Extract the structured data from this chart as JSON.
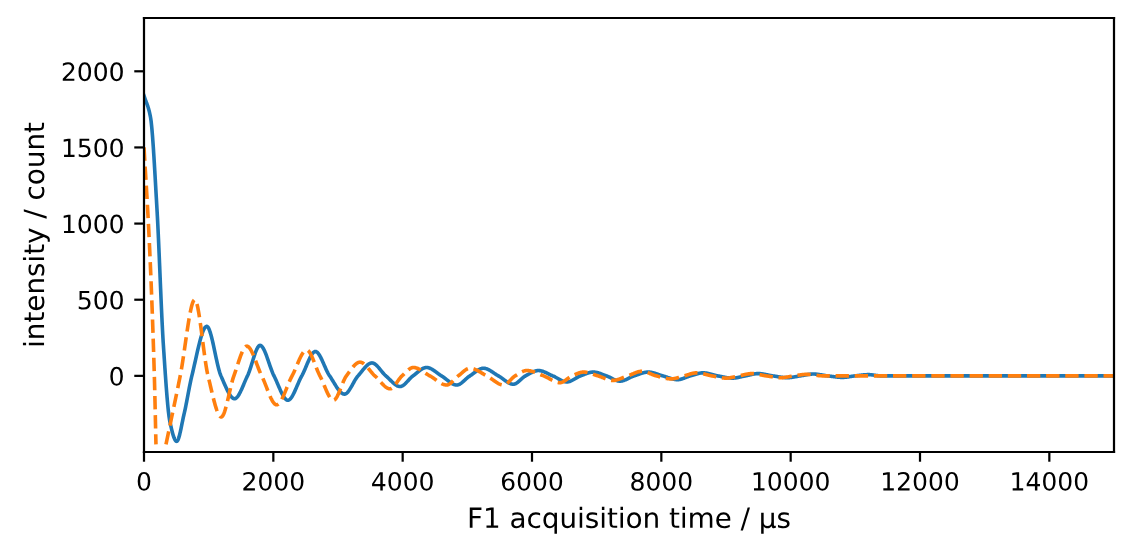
{
  "chart_data": {
    "type": "line",
    "xlabel": "F1 acquisition time / µs",
    "ylabel": "intensity / count",
    "xlim": [
      0,
      15000
    ],
    "xticks": [
      0,
      2000,
      4000,
      6000,
      8000,
      10000,
      12000,
      14000
    ],
    "ylim": [
      -500,
      2350
    ],
    "yticks": [
      0,
      500,
      1000,
      1500,
      2000
    ],
    "grid": false,
    "legend": false,
    "series": [
      {
        "color": "#1f77b4",
        "line_style": "solid",
        "x": [
          0,
          100,
          200,
          300,
          400,
          505,
          620,
          740,
          970,
          1190,
          1400,
          1600,
          1795,
          2010,
          2225,
          2440,
          2650,
          2870,
          3100,
          3310,
          3525,
          3740,
          3960,
          4160,
          4370,
          4600,
          4835,
          5040,
          5250,
          5480,
          5710,
          5900,
          6100,
          6320,
          6540,
          6750,
          6950,
          7150,
          7360,
          7580,
          7800,
          8020,
          8250,
          8450,
          8650,
          8870,
          9100,
          9300,
          9500,
          9720,
          9950,
          10150,
          10350,
          10570,
          10800,
          11000,
          11200,
          11400,
          12000,
          13000,
          14000,
          15000
        ],
        "values": [
          1840,
          1700,
          1100,
          200,
          -300,
          -430,
          -250,
          0,
          325,
          0,
          -150,
          0,
          200,
          0,
          -160,
          0,
          160,
          0,
          -120,
          0,
          85,
          0,
          -70,
          0,
          55,
          0,
          -60,
          0,
          50,
          0,
          -55,
          0,
          35,
          0,
          -40,
          0,
          25,
          0,
          -35,
          0,
          25,
          0,
          -25,
          0,
          20,
          0,
          -15,
          0,
          15,
          0,
          -12,
          0,
          12,
          0,
          -10,
          0,
          8,
          0,
          0,
          0,
          0,
          0
        ]
      },
      {
        "color": "#ff7f0e",
        "line_style": "dashed",
        "x": [
          0,
          80,
          160,
          185,
          260,
          340,
          560,
          785,
          990,
          1195,
          1390,
          1590,
          1820,
          2050,
          2290,
          2515,
          2720,
          2930,
          3130,
          3340,
          3570,
          3805,
          3990,
          4165,
          4420,
          4680,
          4860,
          5040,
          5300,
          5560,
          5740,
          5920,
          6180,
          6430,
          6620,
          6800,
          7020,
          7250,
          7480,
          7700,
          7920,
          8150,
          8350,
          8550,
          8780,
          9000,
          9200,
          9400,
          9620,
          9850,
          10050,
          10250,
          10500,
          11000,
          12000,
          13000,
          14000,
          15000
        ],
        "values": [
          1500,
          900,
          0,
          -450,
          null,
          -450,
          0,
          500,
          0,
          -270,
          0,
          195,
          0,
          -190,
          0,
          170,
          0,
          -160,
          0,
          90,
          0,
          -85,
          0,
          55,
          0,
          -60,
          0,
          50,
          0,
          -60,
          0,
          35,
          0,
          -45,
          0,
          25,
          0,
          -30,
          0,
          30,
          0,
          -20,
          0,
          20,
          0,
          -15,
          0,
          15,
          0,
          -12,
          0,
          10,
          0,
          0,
          0,
          0,
          0,
          0
        ]
      }
    ]
  }
}
